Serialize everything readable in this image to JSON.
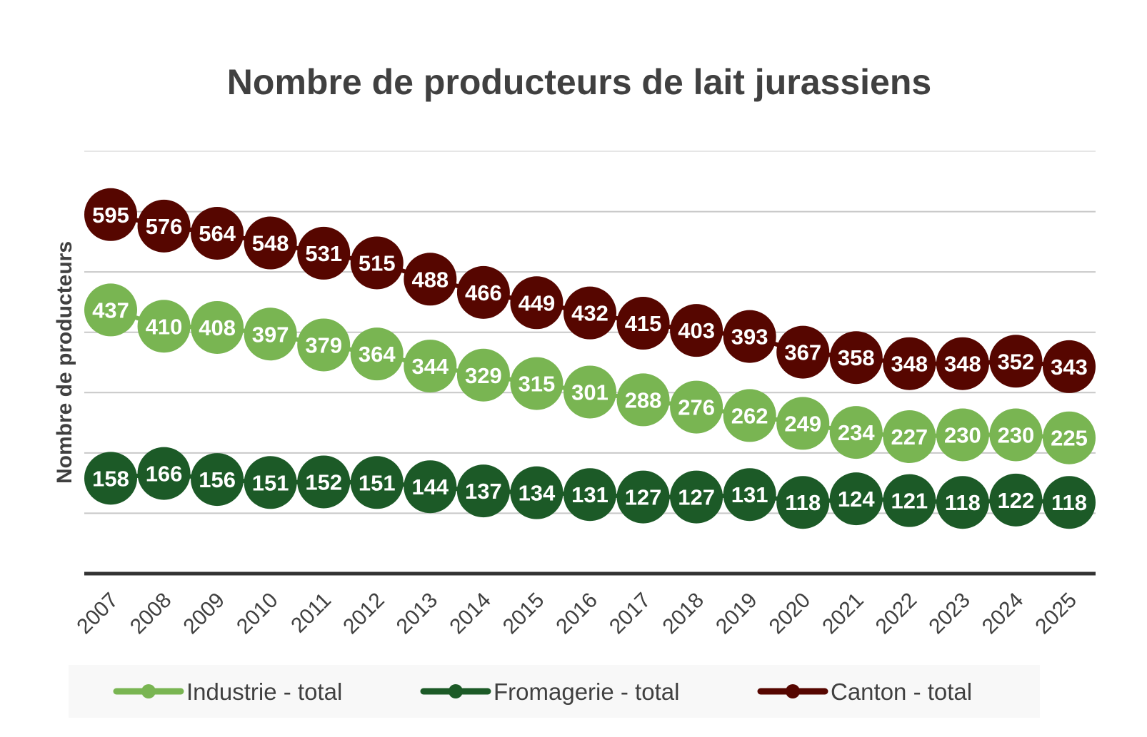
{
  "chart_data": {
    "type": "line",
    "title": "Nombre de producteurs de lait jurassiens",
    "xlabel": "",
    "ylabel": "Nombre de producteurs",
    "ylim": [
      0,
      700
    ],
    "grid": true,
    "legend_position": "bottom",
    "x": [
      "2007",
      "2008",
      "2009",
      "2010",
      "2011",
      "2012",
      "2013",
      "2014",
      "2015",
      "2016",
      "2017",
      "2018",
      "2019",
      "2020",
      "2021",
      "2022",
      "2023",
      "2024",
      "2025"
    ],
    "series": [
      {
        "name": "Industrie - total",
        "color": "#79b552",
        "values": [
          437,
          410,
          408,
          397,
          379,
          364,
          344,
          329,
          315,
          301,
          288,
          276,
          262,
          249,
          234,
          227,
          230,
          230,
          225
        ]
      },
      {
        "name": "Fromagerie - total",
        "color": "#1c5a27",
        "values": [
          158,
          166,
          156,
          151,
          152,
          151,
          144,
          137,
          134,
          131,
          127,
          127,
          131,
          118,
          124,
          121,
          118,
          122,
          118
        ]
      },
      {
        "name": "Canton - total",
        "color": "#560600",
        "values": [
          595,
          576,
          564,
          548,
          531,
          515,
          488,
          466,
          449,
          432,
          415,
          403,
          393,
          367,
          358,
          348,
          348,
          352,
          343
        ]
      }
    ]
  }
}
